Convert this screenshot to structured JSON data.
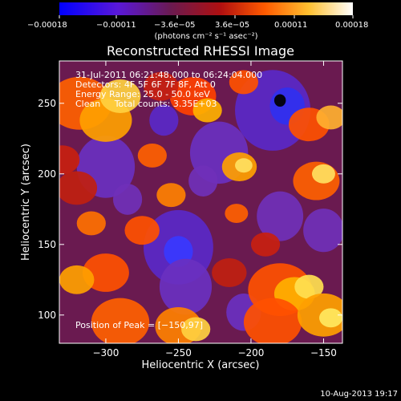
{
  "chart_data": {
    "type": "heatmap",
    "title": "Reconstructed RHESSI Image",
    "xlabel": "Heliocentric X (arcsec)",
    "ylabel": "Heliocentric Y (arcsec)",
    "xlim": [
      -332,
      -137
    ],
    "ylim": [
      80,
      280
    ],
    "xticks": [
      -300,
      -250,
      -200,
      -150
    ],
    "yticks": [
      100,
      150,
      200,
      250
    ],
    "xtick_labels": [
      "−300",
      "−250",
      "−200",
      "−150"
    ],
    "ytick_labels": [
      "100",
      "150",
      "200",
      "250"
    ],
    "colorbar": {
      "units": "(photons cm⁻² s⁻¹ asec⁻²)",
      "range": [
        -0.00018,
        0.00018
      ],
      "ticks": [
        -0.00018,
        -0.00011,
        -3.6e-05,
        3.6e-05,
        0.00011,
        0.00018
      ],
      "tick_labels": [
        "−0.00018",
        "−0.00011",
        "−3.6e−05",
        "3.6e−05",
        "0.00011",
        "0.00018"
      ]
    },
    "annotations": [
      "31-Jul-2011 06:21:48.000 to 06:24:04.000",
      "Detectors: 4F 5F 6F 7F 8F, Att 0",
      "Energy Range: 25.0 - 50.0 keV",
      "Clean     Total counts: 3.35E+03"
    ],
    "peak_label": "Position of Peak = [−150,97]",
    "peak_position": [
      -150,
      97
    ],
    "colormap": [
      "#000000",
      "#3838ff",
      "#7030b8",
      "#6a1a50",
      "#a01818",
      "#ff4000",
      "#ffa000",
      "#ffe040",
      "#ffffff"
    ]
  },
  "footer": {
    "date": "10-Aug-2013 19:17"
  }
}
